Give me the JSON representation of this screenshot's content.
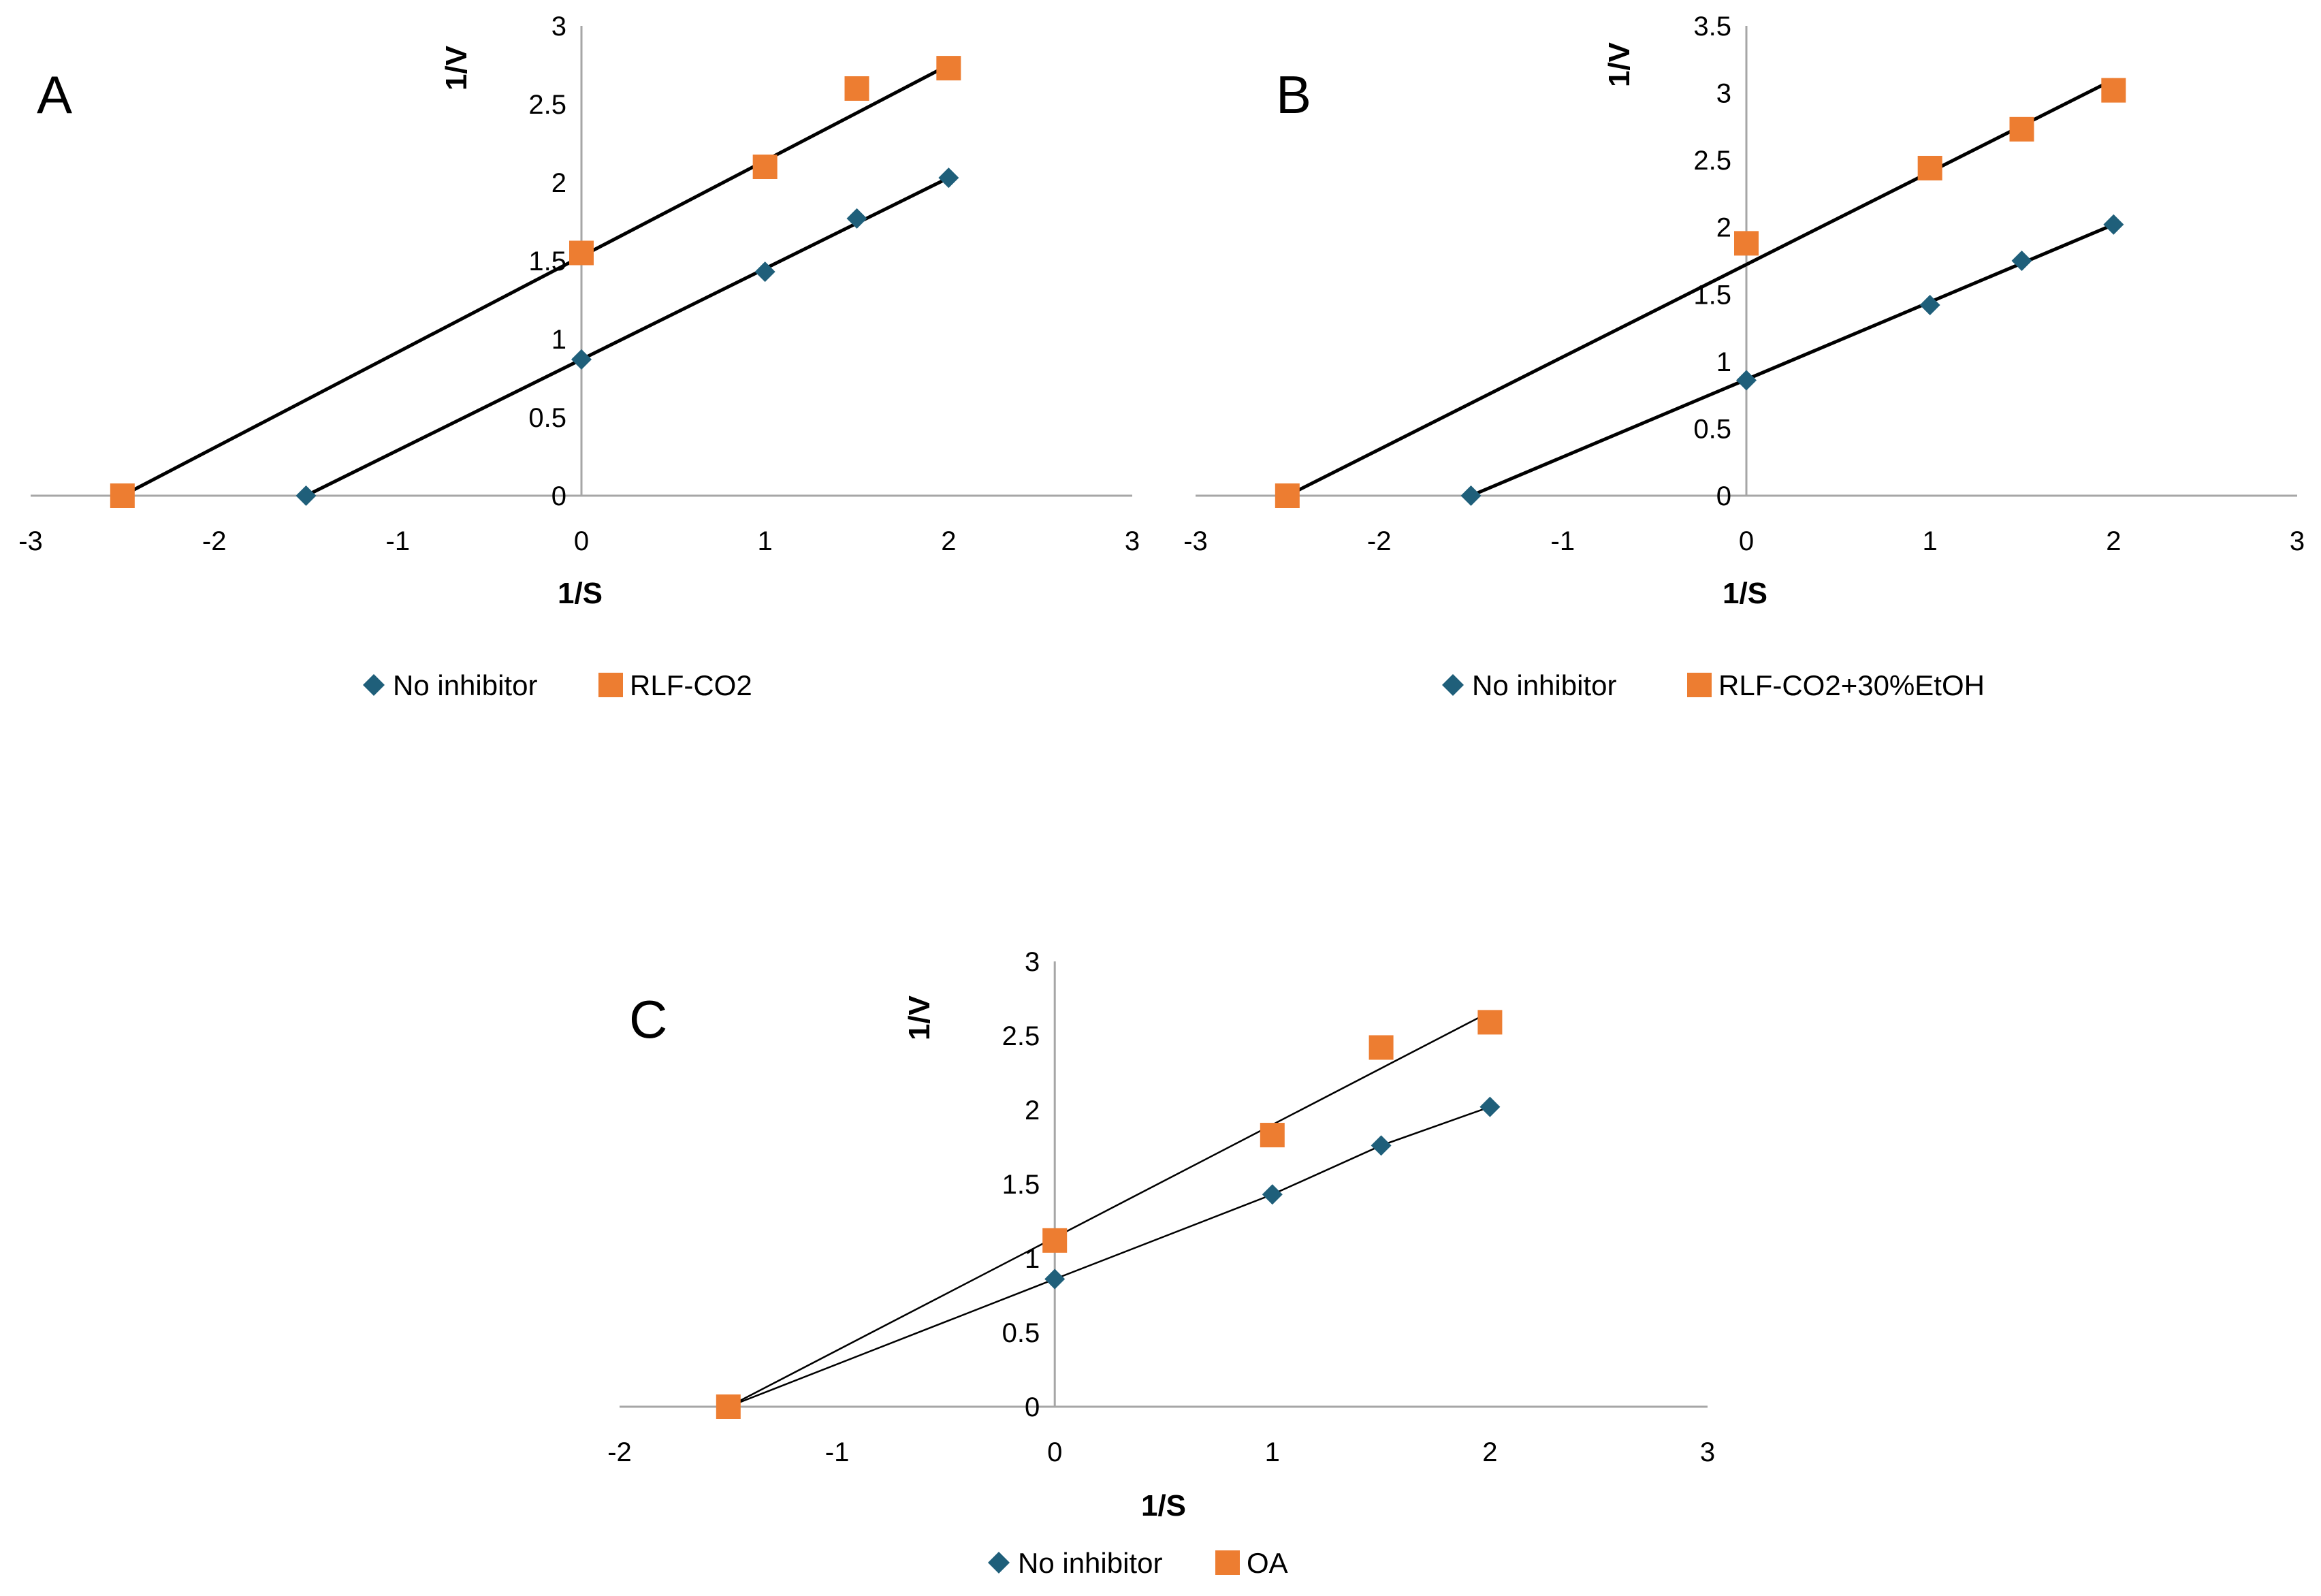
{
  "panels": [
    {
      "letter": "A",
      "xlabel": "1/S",
      "ylabel": "1/V",
      "legend": [
        "No inhibitor",
        "RLF-CO2"
      ]
    },
    {
      "letter": "B",
      "xlabel": "1/S",
      "ylabel": "1/V",
      "legend": [
        "No inhibitor",
        "RLF-CO2+30%EtOH"
      ]
    },
    {
      "letter": "C",
      "xlabel": "1/S",
      "ylabel": "1/V",
      "legend": [
        "No inhibitor",
        "OA"
      ]
    }
  ],
  "colors": {
    "no_inhibitor": "#1f5f7a",
    "inhibitor": "#ed7d31",
    "axis": "#a6a6a6",
    "trendline": "#000000",
    "text": "#000000"
  },
  "chart_data": [
    {
      "type": "scatter",
      "panel": "A",
      "title": "",
      "xlabel": "1/S",
      "ylabel": "1/V",
      "xlim": [
        -3,
        3
      ],
      "ylim": [
        0,
        3
      ],
      "xticks": [
        "-3",
        "-2",
        "-1",
        "0",
        "1",
        "2",
        "3"
      ],
      "yticks": [
        "0",
        "0.5",
        "1",
        "1.5",
        "2",
        "2.5",
        "3"
      ],
      "grid": false,
      "legend_position": "bottom",
      "series": [
        {
          "name": "No inhibitor",
          "marker": "diamond",
          "x": [
            -1.5,
            0,
            1,
            1.5,
            2
          ],
          "y": [
            0,
            0.87,
            1.43,
            1.77,
            2.03
          ],
          "trendline": {
            "x": [
              -1.5,
              2
            ],
            "y": [
              0,
              2.03
            ]
          }
        },
        {
          "name": "RLF-CO2",
          "marker": "square",
          "x": [
            -2.5,
            0,
            1,
            1.5,
            2
          ],
          "y": [
            0,
            1.55,
            2.1,
            2.6,
            2.73
          ],
          "trendline": {
            "x": [
              -2.5,
              2
            ],
            "y": [
              0,
              2.75
            ]
          }
        }
      ]
    },
    {
      "type": "scatter",
      "panel": "B",
      "title": "",
      "xlabel": "1/S",
      "ylabel": "1/V",
      "xlim": [
        -3,
        3
      ],
      "ylim": [
        0,
        3.5
      ],
      "xticks": [
        "-3",
        "-2",
        "-1",
        "0",
        "1",
        "2",
        "3"
      ],
      "yticks": [
        "0",
        "0.5",
        "1",
        "1.5",
        "2",
        "2.5",
        "3",
        "3.5"
      ],
      "grid": false,
      "legend_position": "bottom",
      "series": [
        {
          "name": "No inhibitor",
          "marker": "diamond",
          "x": [
            -1.5,
            0,
            1,
            1.5,
            2
          ],
          "y": [
            0,
            0.86,
            1.42,
            1.75,
            2.02
          ],
          "trendline": {
            "x": [
              -1.5,
              2
            ],
            "y": [
              0,
              2.02
            ]
          }
        },
        {
          "name": "RLF-CO2+30%EtOH",
          "marker": "square",
          "x": [
            -2.5,
            0,
            1,
            1.5,
            2
          ],
          "y": [
            0,
            1.88,
            2.44,
            2.73,
            3.02
          ],
          "trendline": {
            "x": [
              -2.5,
              2
            ],
            "y": [
              0,
              3.1
            ]
          }
        }
      ]
    },
    {
      "type": "scatter",
      "panel": "C",
      "title": "",
      "xlabel": "1/S",
      "ylabel": "1/V",
      "xlim": [
        -2,
        3
      ],
      "ylim": [
        0,
        3
      ],
      "xticks": [
        "-2",
        "-1",
        "0",
        "1",
        "2",
        "3"
      ],
      "yticks": [
        "0",
        "0.5",
        "1",
        "1.5",
        "2",
        "2.5",
        "3"
      ],
      "grid": false,
      "legend_position": "bottom",
      "series": [
        {
          "name": "No inhibitor",
          "marker": "diamond",
          "x": [
            -1.5,
            0,
            1,
            1.5,
            2
          ],
          "y": [
            0,
            0.86,
            1.43,
            1.76,
            2.02
          ],
          "trendline": {
            "x": [
              -1.5,
              0,
              1,
              1.5,
              2
            ],
            "y": [
              0,
              0.86,
              1.43,
              1.76,
              2.02
            ]
          }
        },
        {
          "name": "OA",
          "marker": "square",
          "x": [
            -1.5,
            0,
            1,
            1.5,
            2
          ],
          "y": [
            0,
            1.12,
            1.83,
            2.42,
            2.59
          ],
          "trendline": {
            "x": [
              -1.5,
              2
            ],
            "y": [
              0,
              2.66
            ]
          }
        }
      ]
    }
  ]
}
